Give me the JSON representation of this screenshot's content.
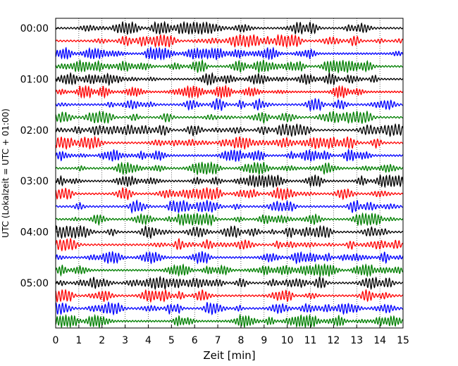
{
  "chart_data": {
    "type": "line",
    "xlabel": "Zeit  [min]",
    "ylabel": "UTC (Lokalzeit = UTC + 01:00)",
    "xlim": [
      0,
      15
    ],
    "x_ticks": [
      "0",
      "1",
      "2",
      "3",
      "4",
      "5",
      "6",
      "7",
      "8",
      "9",
      "10",
      "11",
      "12",
      "13",
      "14",
      "15"
    ],
    "y_tick_labels": [
      "00:00",
      "01:00",
      "02:00",
      "03:00",
      "04:00",
      "05:00"
    ],
    "grid": "vertical dotted lines at every minute",
    "trace_interval_minutes": 15,
    "trace_count": 24,
    "trace_colors": [
      "#000000",
      "#ff0000",
      "#0000ff",
      "#007f00"
    ],
    "series": [
      {
        "start": "00:00",
        "color": "#000000"
      },
      {
        "start": "00:15",
        "color": "#ff0000"
      },
      {
        "start": "00:30",
        "color": "#0000ff"
      },
      {
        "start": "00:45",
        "color": "#007f00"
      },
      {
        "start": "01:00",
        "color": "#000000"
      },
      {
        "start": "01:15",
        "color": "#ff0000"
      },
      {
        "start": "01:30",
        "color": "#0000ff"
      },
      {
        "start": "01:45",
        "color": "#007f00"
      },
      {
        "start": "02:00",
        "color": "#000000"
      },
      {
        "start": "02:15",
        "color": "#ff0000"
      },
      {
        "start": "02:30",
        "color": "#0000ff"
      },
      {
        "start": "02:45",
        "color": "#007f00"
      },
      {
        "start": "03:00",
        "color": "#000000"
      },
      {
        "start": "03:15",
        "color": "#ff0000"
      },
      {
        "start": "03:30",
        "color": "#0000ff"
      },
      {
        "start": "03:45",
        "color": "#007f00"
      },
      {
        "start": "04:00",
        "color": "#000000"
      },
      {
        "start": "04:15",
        "color": "#ff0000"
      },
      {
        "start": "04:30",
        "color": "#0000ff"
      },
      {
        "start": "04:45",
        "color": "#007f00"
      },
      {
        "start": "05:00",
        "color": "#000000"
      },
      {
        "start": "05:15",
        "color": "#ff0000"
      },
      {
        "start": "05:30",
        "color": "#0000ff"
      },
      {
        "start": "05:45",
        "color": "#007f00"
      }
    ]
  }
}
